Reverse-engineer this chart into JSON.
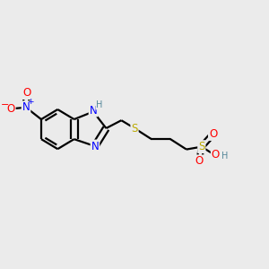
{
  "bg_color": "#ebebeb",
  "bond_color": "#000000",
  "bond_width": 1.6,
  "dbo": 0.012,
  "atom_colors": {
    "N": "#0000ff",
    "O": "#ff0000",
    "S": "#bbaa00",
    "H_label": "#558899",
    "C": "#000000"
  },
  "font_size_main": 8.5,
  "font_size_small": 7.0,
  "figsize": [
    3.0,
    3.0
  ],
  "dpi": 100
}
